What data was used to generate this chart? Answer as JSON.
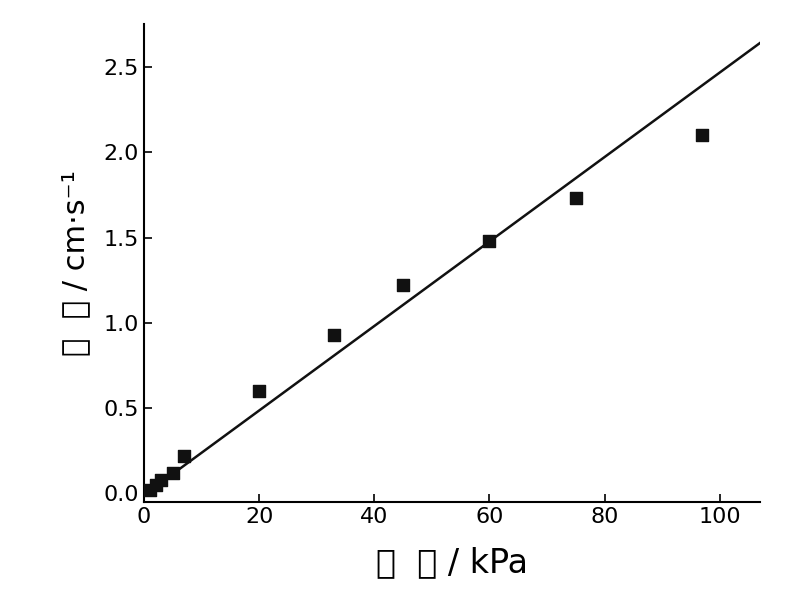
{
  "x_data": [
    1,
    2,
    3,
    5,
    7,
    20,
    33,
    45,
    60,
    75,
    97
  ],
  "y_data": [
    0.02,
    0.05,
    0.08,
    0.12,
    0.22,
    0.6,
    0.93,
    1.22,
    1.48,
    1.73,
    2.1
  ],
  "line_x": [
    0,
    107
  ],
  "line_slope": 0.02478,
  "line_intercept": -0.01,
  "xlabel": "压  力 / kPa",
  "ylabel": "流  速 / cm·s⁻¹",
  "xlim": [
    0,
    107
  ],
  "ylim": [
    -0.05,
    2.75
  ],
  "xticks": [
    0,
    20,
    40,
    60,
    80,
    100
  ],
  "yticks": [
    0.0,
    0.5,
    1.0,
    1.5,
    2.0,
    2.5
  ],
  "marker_color": "#111111",
  "line_color": "#111111",
  "bg_color": "#ffffff",
  "marker_size": 8,
  "line_width": 1.8,
  "xlabel_fontsize": 24,
  "ylabel_fontsize": 22,
  "tick_fontsize": 16
}
